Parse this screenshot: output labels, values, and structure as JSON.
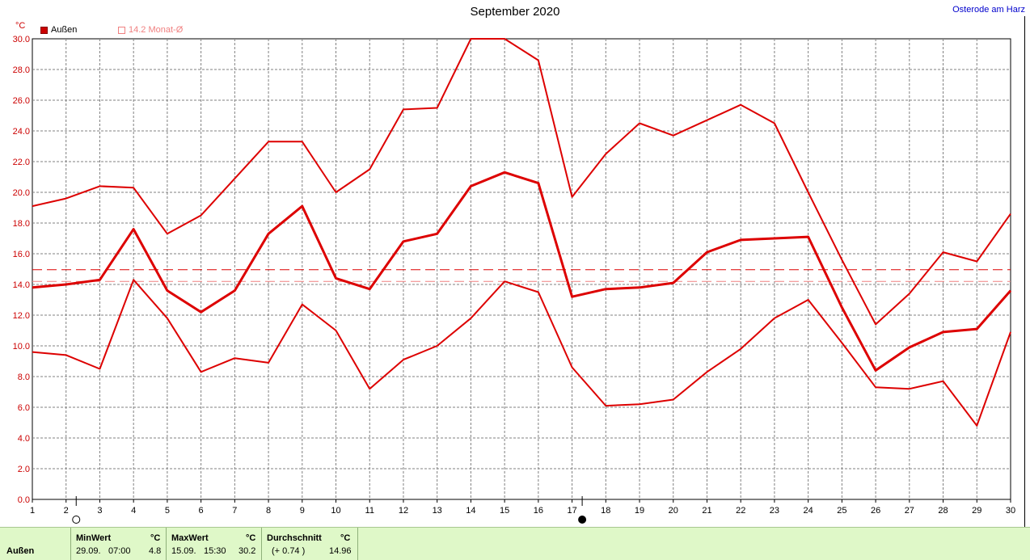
{
  "title": "September 2020",
  "location": "Osterode am Harz",
  "unit": "°C",
  "legend": {
    "main_label": "Außen",
    "avg_label": "14.2 Monat-Ø"
  },
  "footer": {
    "row_name": "Außen",
    "min_header": "MinWert",
    "min_unit": "°C",
    "min_date": "29.09.",
    "min_time": "07:00",
    "min_value": "4.8",
    "max_header": "MaxWert",
    "max_unit": "°C",
    "max_date": "15.09.",
    "max_time": "15:30",
    "max_value": "30.2",
    "avg_header": "Durchschnitt",
    "avg_unit": "°C",
    "avg_diff": "(+ 0.74 )",
    "avg_value": "14.96"
  },
  "colors": {
    "series": "#dd0000",
    "reference": "#f08080",
    "grid": "#808080",
    "footer_bg": "#dff8c8"
  },
  "chart_data": {
    "type": "line",
    "title": "September 2020",
    "ylabel": "°C",
    "xlabel": "",
    "x": [
      1,
      2,
      3,
      4,
      5,
      6,
      7,
      8,
      9,
      10,
      11,
      12,
      13,
      14,
      15,
      16,
      17,
      18,
      19,
      20,
      21,
      22,
      23,
      24,
      25,
      26,
      27,
      28,
      29,
      30
    ],
    "ylim": [
      0,
      30
    ],
    "yticks": [
      0,
      2,
      4,
      6,
      8,
      10,
      12,
      14,
      16,
      18,
      20,
      22,
      24,
      26,
      28,
      30
    ],
    "grid": true,
    "legend_position": "top-left",
    "series": [
      {
        "name": "Außen",
        "role": "max",
        "values": [
          19.1,
          19.6,
          20.4,
          20.3,
          17.3,
          18.5,
          20.9,
          23.3,
          23.3,
          20.0,
          21.5,
          25.4,
          25.5,
          30.0,
          30.0,
          28.6,
          19.7,
          22.5,
          24.5,
          23.7,
          24.7,
          25.7,
          24.5,
          20.0,
          15.6,
          11.4,
          13.4,
          16.1,
          15.5,
          18.6
        ]
      },
      {
        "name": "Außen",
        "role": "mean",
        "values": [
          13.8,
          14.0,
          14.3,
          17.6,
          13.6,
          12.2,
          13.6,
          17.3,
          19.1,
          14.4,
          13.7,
          16.8,
          17.3,
          20.4,
          21.3,
          20.6,
          13.2,
          13.7,
          13.8,
          14.1,
          16.1,
          16.9,
          17.0,
          17.1,
          12.5,
          8.4,
          9.9,
          10.9,
          11.1,
          13.6
        ]
      },
      {
        "name": "Außen",
        "role": "min",
        "values": [
          9.6,
          9.4,
          8.5,
          14.3,
          11.8,
          8.3,
          9.2,
          8.9,
          12.7,
          11.0,
          7.2,
          9.1,
          10.0,
          11.8,
          14.2,
          13.5,
          8.6,
          6.1,
          6.2,
          6.5,
          8.3,
          9.8,
          11.8,
          13.0,
          10.2,
          7.3,
          7.2,
          7.7,
          4.8,
          10.9
        ]
      }
    ],
    "reference_lines": [
      {
        "label": "14.2 Monat-Ø",
        "value": 14.2
      },
      {
        "label": "",
        "value": 14.96
      }
    ],
    "markers": [
      {
        "day": 2.3,
        "symbol": "open-circle"
      },
      {
        "day": 17.3,
        "symbol": "filled-circle"
      }
    ]
  }
}
